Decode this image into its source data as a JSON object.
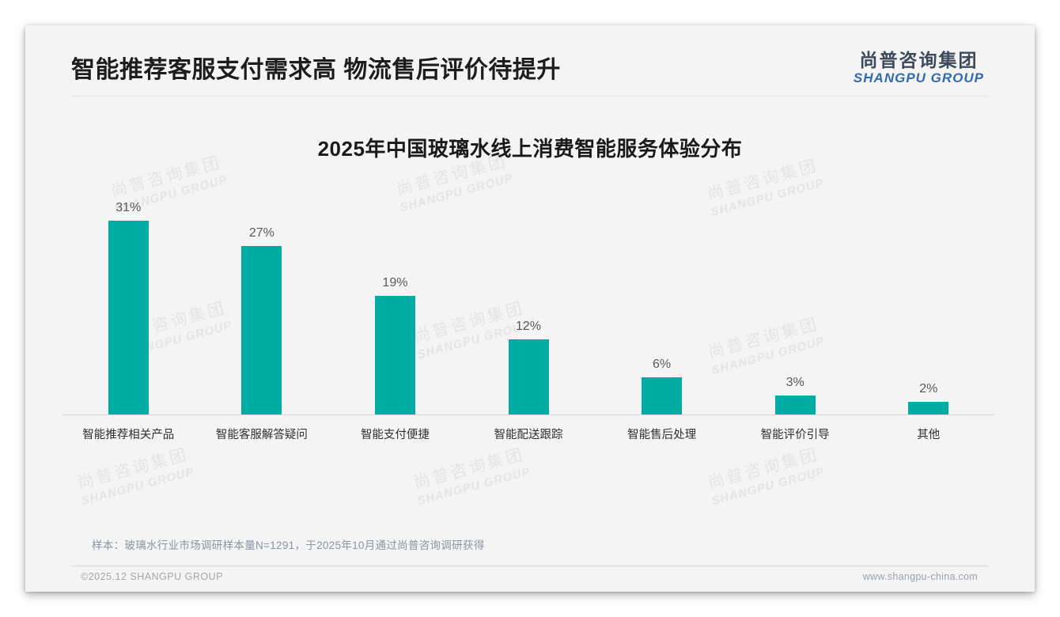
{
  "page": {
    "header": {
      "title": "智能推荐客服支付需求高 物流售后评价待提升",
      "logo": {
        "cn": "尚普咨询集团",
        "en": "SHANGPU GROUP"
      }
    },
    "watermark": {
      "cn": "尚普咨询集团",
      "en": "SHANGPU GROUP"
    },
    "note": "样本：玻璃水行业市场调研样本量N=1291，于2025年10月通过尚普咨询调研获得",
    "footer": {
      "copyright": "©2025.12 SHANGPU GROUP",
      "website": "www.shangpu-china.com"
    }
  },
  "chart_data": {
    "type": "bar",
    "title": "2025年中国玻璃水线上消费智能服务体验分布",
    "categories": [
      "智能推荐相关产品",
      "智能客服解答疑问",
      "智能支付便捷",
      "智能配送跟踪",
      "智能售后处理",
      "智能评价引导",
      "其他"
    ],
    "values": [
      31,
      27,
      19,
      12,
      6,
      3,
      2
    ],
    "data_labels": [
      "31%",
      "27%",
      "19%",
      "12%",
      "6%",
      "3%",
      "2%"
    ],
    "unit": "%",
    "bar_color": "#00ada4",
    "value_label_color": "#595959",
    "xlabel": "",
    "ylabel": "",
    "ylim": [
      0,
      33
    ],
    "grid": false,
    "legend": false,
    "baseline_color": "#d8d8d8"
  }
}
